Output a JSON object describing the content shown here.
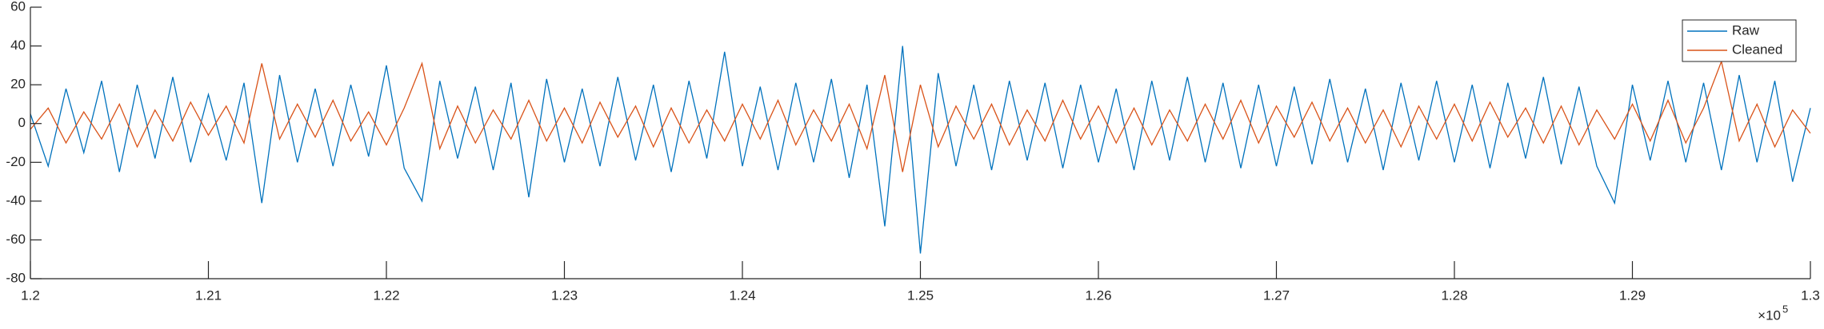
{
  "chart_data": {
    "type": "line",
    "x": [
      1.2,
      1.201,
      1.202,
      1.203,
      1.204,
      1.205,
      1.206,
      1.207,
      1.208,
      1.209,
      1.21,
      1.211,
      1.212,
      1.213,
      1.214,
      1.215,
      1.216,
      1.217,
      1.218,
      1.219,
      1.22,
      1.221,
      1.222,
      1.223,
      1.224,
      1.225,
      1.226,
      1.227,
      1.228,
      1.229,
      1.23,
      1.231,
      1.232,
      1.233,
      1.234,
      1.235,
      1.236,
      1.237,
      1.238,
      1.239,
      1.24,
      1.241,
      1.242,
      1.243,
      1.244,
      1.245,
      1.246,
      1.247,
      1.248,
      1.249,
      1.25,
      1.251,
      1.252,
      1.253,
      1.254,
      1.255,
      1.256,
      1.257,
      1.258,
      1.259,
      1.26,
      1.261,
      1.262,
      1.263,
      1.264,
      1.265,
      1.266,
      1.267,
      1.268,
      1.269,
      1.27,
      1.271,
      1.272,
      1.273,
      1.274,
      1.275,
      1.276,
      1.277,
      1.278,
      1.279,
      1.28,
      1.281,
      1.282,
      1.283,
      1.284,
      1.285,
      1.286,
      1.287,
      1.288,
      1.289,
      1.29,
      1.291,
      1.292,
      1.293,
      1.294,
      1.295,
      1.296,
      1.297,
      1.298,
      1.299,
      1.3
    ],
    "series": [
      {
        "name": "Raw",
        "color": "#0072BD",
        "values": [
          5,
          -22,
          18,
          -15,
          22,
          -25,
          20,
          -18,
          24,
          -20,
          15,
          -19,
          21,
          -41,
          25,
          -20,
          18,
          -22,
          20,
          -17,
          30,
          -23,
          -40,
          22,
          -18,
          19,
          -24,
          21,
          -38,
          23,
          -20,
          18,
          -22,
          24,
          -19,
          20,
          -25,
          22,
          -18,
          37,
          -22,
          19,
          -24,
          21,
          -20,
          23,
          -28,
          20,
          -53,
          40,
          -67,
          26,
          -22,
          20,
          -24,
          22,
          -19,
          21,
          -23,
          20,
          -20,
          18,
          -24,
          22,
          -19,
          24,
          -20,
          21,
          -23,
          20,
          -22,
          19,
          -21,
          23,
          -20,
          18,
          -24,
          21,
          -19,
          22,
          -20,
          20,
          -23,
          21,
          -18,
          24,
          -21,
          19,
          -22,
          -41,
          20,
          -19,
          22,
          -20,
          21,
          -24,
          25,
          -20,
          22,
          -30,
          8
        ]
      },
      {
        "name": "Cleaned",
        "color": "#D95319",
        "values": [
          -3,
          8,
          -10,
          6,
          -8,
          10,
          -12,
          7,
          -9,
          11,
          -6,
          9,
          -10,
          31,
          -8,
          10,
          -7,
          12,
          -9,
          6,
          -11,
          8,
          31,
          -13,
          9,
          -10,
          7,
          -8,
          12,
          -9,
          8,
          -10,
          11,
          -7,
          9,
          -12,
          8,
          -10,
          7,
          -9,
          10,
          -8,
          12,
          -11,
          7,
          -9,
          10,
          -13,
          25,
          -25,
          20,
          -12,
          9,
          -8,
          10,
          -11,
          7,
          -9,
          12,
          -8,
          9,
          -10,
          8,
          -11,
          7,
          -9,
          10,
          -8,
          12,
          -10,
          9,
          -7,
          11,
          -9,
          8,
          -10,
          7,
          -12,
          9,
          -8,
          10,
          -9,
          11,
          -7,
          8,
          -10,
          9,
          -11,
          7,
          -8,
          10,
          -9,
          12,
          -10,
          8,
          32,
          -9,
          10,
          -12,
          7,
          -5
        ]
      }
    ],
    "xlim": [
      1.2,
      1.3
    ],
    "xticks": [
      1.2,
      1.21,
      1.22,
      1.23,
      1.24,
      1.25,
      1.26,
      1.27,
      1.28,
      1.29,
      1.3
    ],
    "x_exponent_base": "×10",
    "x_exponent_power": "5",
    "ylim": [
      -80,
      60
    ],
    "yticks": [
      -80,
      -60,
      -40,
      -20,
      0,
      20,
      40,
      60
    ],
    "legend": "upper right"
  }
}
